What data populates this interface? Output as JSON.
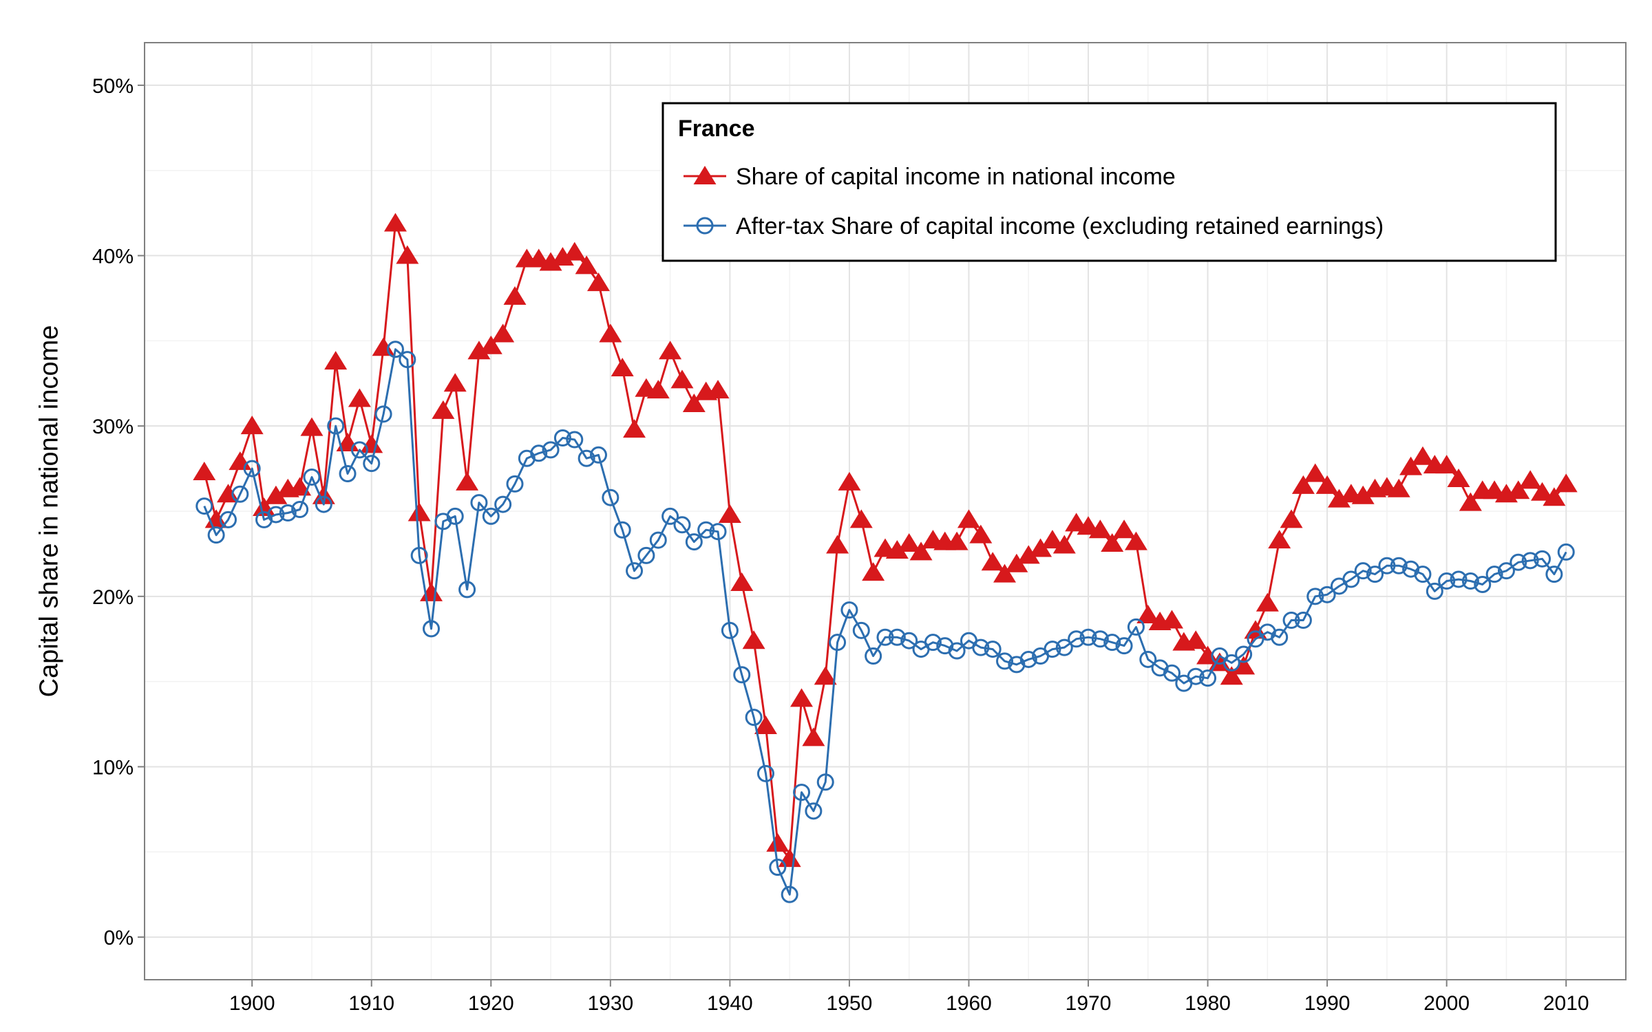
{
  "chart_data": {
    "type": "line",
    "ylabel": "Capital share in national income",
    "xlabel": "",
    "xlim": [
      1891,
      2015
    ],
    "ylim": [
      -2.5,
      52.5
    ],
    "x_ticks": [
      1900,
      1910,
      1920,
      1930,
      1940,
      1950,
      1960,
      1970,
      1980,
      1990,
      2000,
      2010
    ],
    "y_ticks": [
      0,
      10,
      20,
      30,
      40,
      50
    ],
    "y_tick_labels": [
      "0%",
      "10%",
      "20%",
      "30%",
      "40%",
      "50%"
    ],
    "grid": true,
    "legend": {
      "title": "France",
      "position": "top-right"
    },
    "x": [
      1896,
      1897,
      1898,
      1899,
      1900,
      1901,
      1902,
      1903,
      1904,
      1905,
      1906,
      1907,
      1908,
      1909,
      1910,
      1911,
      1912,
      1913,
      1914,
      1915,
      1916,
      1917,
      1918,
      1919,
      1920,
      1921,
      1922,
      1923,
      1924,
      1925,
      1926,
      1927,
      1928,
      1929,
      1930,
      1931,
      1932,
      1933,
      1934,
      1935,
      1936,
      1937,
      1938,
      1939,
      1940,
      1941,
      1942,
      1943,
      1944,
      1945,
      1946,
      1947,
      1948,
      1949,
      1950,
      1951,
      1952,
      1953,
      1954,
      1955,
      1956,
      1957,
      1958,
      1959,
      1960,
      1961,
      1962,
      1963,
      1964,
      1965,
      1966,
      1967,
      1968,
      1969,
      1970,
      1971,
      1972,
      1973,
      1974,
      1975,
      1976,
      1977,
      1978,
      1979,
      1980,
      1981,
      1982,
      1983,
      1984,
      1985,
      1986,
      1987,
      1988,
      1989,
      1990,
      1991,
      1992,
      1993,
      1994,
      1995,
      1996,
      1997,
      1998,
      1999,
      2000,
      2001,
      2002,
      2003,
      2004,
      2005,
      2006,
      2007,
      2008,
      2009,
      2010
    ],
    "series": [
      {
        "name": "Share of capital income in national income",
        "color": "#d7191c",
        "marker": "triangle",
        "values": [
          27.3,
          24.5,
          26.0,
          27.9,
          30.0,
          25.2,
          25.9,
          26.3,
          26.4,
          29.9,
          25.9,
          33.8,
          29.0,
          31.6,
          28.9,
          34.6,
          41.9,
          40.0,
          24.9,
          20.2,
          30.9,
          32.5,
          26.7,
          34.4,
          34.7,
          35.4,
          37.6,
          39.8,
          39.8,
          39.6,
          39.9,
          40.2,
          39.4,
          38.4,
          35.4,
          33.4,
          29.8,
          32.2,
          32.1,
          34.4,
          32.7,
          31.3,
          32.0,
          32.1,
          24.8,
          20.8,
          17.4,
          12.4,
          5.5,
          4.6,
          14.0,
          11.7,
          15.3,
          23.0,
          26.7,
          24.5,
          21.4,
          22.8,
          22.7,
          23.1,
          22.6,
          23.3,
          23.2,
          23.2,
          24.5,
          23.6,
          22.0,
          21.3,
          21.9,
          22.4,
          22.8,
          23.3,
          23.0,
          24.3,
          24.1,
          23.9,
          23.1,
          23.9,
          23.2,
          18.9,
          18.5,
          18.6,
          17.3,
          17.4,
          16.5,
          16.1,
          15.3,
          15.9,
          18.0,
          19.6,
          23.3,
          24.5,
          26.5,
          27.2,
          26.5,
          25.7,
          26.0,
          25.9,
          26.3,
          26.4,
          26.3,
          27.6,
          28.2,
          27.7,
          27.7,
          26.9,
          25.5,
          26.2,
          26.2,
          26.0,
          26.2,
          26.8,
          26.1,
          25.8,
          26.6
        ]
      },
      {
        "name": "After-tax Share of capital income (excluding retained earnings)",
        "color": "#2c6eb0",
        "marker": "circle",
        "values": [
          25.3,
          23.6,
          24.5,
          26.0,
          27.5,
          24.5,
          24.8,
          24.9,
          25.1,
          27.0,
          25.4,
          30.0,
          27.2,
          28.6,
          27.8,
          30.7,
          34.5,
          33.9,
          22.4,
          18.1,
          24.4,
          24.7,
          20.4,
          25.5,
          24.7,
          25.4,
          26.6,
          28.1,
          28.4,
          28.6,
          29.3,
          29.2,
          28.1,
          28.3,
          25.8,
          23.9,
          21.5,
          22.4,
          23.3,
          24.7,
          24.2,
          23.2,
          23.9,
          23.8,
          18.0,
          15.4,
          12.9,
          9.6,
          4.1,
          2.5,
          8.5,
          7.4,
          9.1,
          17.3,
          19.2,
          18.0,
          16.5,
          17.6,
          17.6,
          17.4,
          16.9,
          17.3,
          17.1,
          16.8,
          17.4,
          17.0,
          16.9,
          16.2,
          16.0,
          16.3,
          16.5,
          16.9,
          17.0,
          17.5,
          17.6,
          17.5,
          17.3,
          17.1,
          18.2,
          16.3,
          15.8,
          15.5,
          14.9,
          15.3,
          15.2,
          16.5,
          16.1,
          16.6,
          17.5,
          17.9,
          17.6,
          18.6,
          18.6,
          20.0,
          20.1,
          20.6,
          21.0,
          21.5,
          21.3,
          21.8,
          21.8,
          21.6,
          21.3,
          20.3,
          20.9,
          21.0,
          20.9,
          20.7,
          21.3,
          21.5,
          22.0,
          22.1,
          22.2,
          21.3,
          22.6
        ]
      }
    ]
  }
}
